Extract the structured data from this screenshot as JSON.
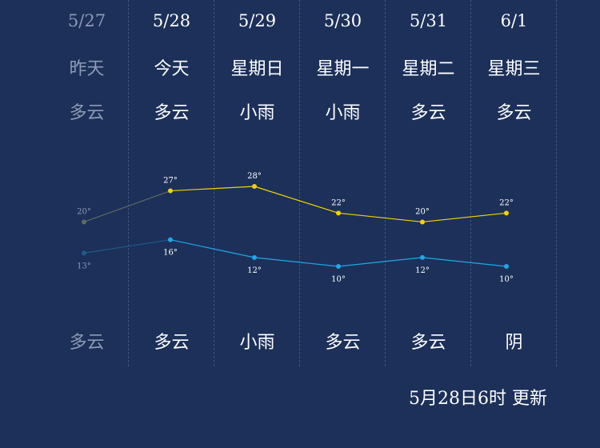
{
  "forecast": {
    "days": [
      {
        "date": "5/27",
        "weekday": "昨天",
        "day_condition": "多云",
        "high": 20,
        "low": 13,
        "night_condition": "多云",
        "past": true
      },
      {
        "date": "5/28",
        "weekday": "今天",
        "day_condition": "多云",
        "high": 27,
        "low": 16,
        "night_condition": "多云",
        "past": false
      },
      {
        "date": "5/29",
        "weekday": "星期日",
        "day_condition": "小雨",
        "high": 28,
        "low": 12,
        "night_condition": "小雨",
        "past": false
      },
      {
        "date": "5/30",
        "weekday": "星期一",
        "day_condition": "小雨",
        "high": 22,
        "low": 10,
        "night_condition": "多云",
        "past": false
      },
      {
        "date": "5/31",
        "weekday": "星期二",
        "day_condition": "多云",
        "high": 20,
        "low": 12,
        "night_condition": "多云",
        "past": false
      },
      {
        "date": "6/1",
        "weekday": "星期三",
        "day_condition": "多云",
        "high": 22,
        "low": 10,
        "night_condition": "阴",
        "past": false
      }
    ],
    "temp_unit": "°"
  },
  "chart_data": {
    "type": "line",
    "x": [
      "5/27",
      "5/28",
      "5/29",
      "5/30",
      "5/31",
      "6/1"
    ],
    "series": [
      {
        "values": [
          20,
          27,
          28,
          22,
          20,
          22
        ],
        "color": "#f5d300"
      },
      {
        "values": [
          13,
          16,
          12,
          10,
          12,
          10
        ],
        "color": "#20a8e8"
      }
    ],
    "past_color_high": "#5f6a60",
    "past_color_low": "#1f5c8c",
    "grid": false
  },
  "footer": {
    "update_text": "5月28日6时 更新"
  }
}
